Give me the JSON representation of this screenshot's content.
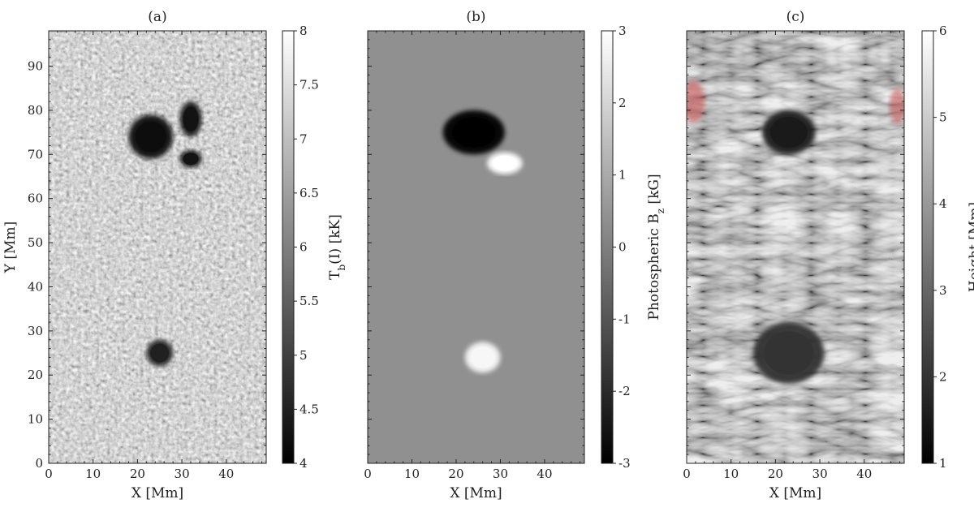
{
  "chart_data": [
    {
      "type": "heatmap",
      "panel": "(a)",
      "xlabel": "X [Mm]",
      "ylabel": "Y [Mm]",
      "xlim": [
        0,
        49
      ],
      "ylim": [
        0,
        98
      ],
      "xticks": [
        0,
        10,
        20,
        30,
        40
      ],
      "yticks": [
        0,
        10,
        20,
        30,
        40,
        50,
        60,
        70,
        80,
        90
      ],
      "colorbar": {
        "label_main": "T",
        "label_sub": "b",
        "label_rest": "(I) [kK]",
        "min": 4,
        "max": 8,
        "ticks": [
          "4",
          "4.5",
          "5",
          "5.5",
          "6",
          "6.5",
          "7",
          "7.5",
          "8"
        ],
        "colormap": "gray"
      },
      "features": [
        {
          "name": "sunspot-upper-left",
          "x": 23,
          "y": 74,
          "rx": 5,
          "ry": 5,
          "value": 4.2
        },
        {
          "name": "sunspot-upper-right",
          "x": 32,
          "y": 78,
          "rx": 2.5,
          "ry": 4,
          "value": 4.3
        },
        {
          "name": "sunspot-upper-lower",
          "x": 32,
          "y": 69,
          "rx": 2.5,
          "ry": 2,
          "value": 4.3
        },
        {
          "name": "sunspot-lower",
          "x": 25,
          "y": 25,
          "rx": 3,
          "ry": 3,
          "value": 4.5
        }
      ]
    },
    {
      "type": "heatmap",
      "panel": "(b)",
      "xlabel": "X [Mm]",
      "ylabel": "",
      "xlim": [
        0,
        49
      ],
      "ylim": [
        0,
        98
      ],
      "xticks": [
        0,
        10,
        20,
        30,
        40
      ],
      "yticks": [
        0,
        10,
        20,
        30,
        40,
        50,
        60,
        70,
        80,
        90
      ],
      "colorbar": {
        "label_main": "Photospheric B",
        "label_sub": "z",
        "label_rest": " [kG]",
        "min": -3,
        "max": 3,
        "ticks": [
          "-3",
          "-2",
          "-1",
          "0",
          "1",
          "2",
          "3"
        ],
        "colormap": "gray"
      },
      "features": [
        {
          "name": "negative-polarity-spot",
          "x": 24,
          "y": 75,
          "rx": 7,
          "ry": 5,
          "value": -3
        },
        {
          "name": "positive-polarity-upper",
          "x": 31,
          "y": 68,
          "rx": 4,
          "ry": 2.5,
          "value": 3
        },
        {
          "name": "positive-polarity-lower",
          "x": 26,
          "y": 24,
          "rx": 4,
          "ry": 3.5,
          "value": 2.8
        }
      ]
    },
    {
      "type": "heatmap",
      "panel": "(c)",
      "xlabel": "X [Mm]",
      "ylabel": "",
      "xlim": [
        0,
        49
      ],
      "ylim": [
        0,
        98
      ],
      "xticks": [
        0,
        10,
        20,
        30,
        40
      ],
      "yticks": [
        0,
        10,
        20,
        30,
        40,
        50,
        60,
        70,
        80,
        90
      ],
      "colorbar": {
        "label_main": "Height [Mm]",
        "label_sub": "",
        "label_rest": "",
        "min": 1,
        "max": 6,
        "ticks": [
          "1",
          "2",
          "3",
          "4",
          "5",
          "6"
        ],
        "colormap": "gray"
      },
      "overlay_color": "#c85a5a",
      "features": [
        {
          "name": "dark-core-upper",
          "x": 23,
          "y": 75,
          "rx": 6,
          "ry": 5,
          "value": 1.5
        },
        {
          "name": "dark-core-lower",
          "x": 23,
          "y": 25,
          "rx": 8,
          "ry": 7,
          "value": 2
        }
      ]
    }
  ]
}
